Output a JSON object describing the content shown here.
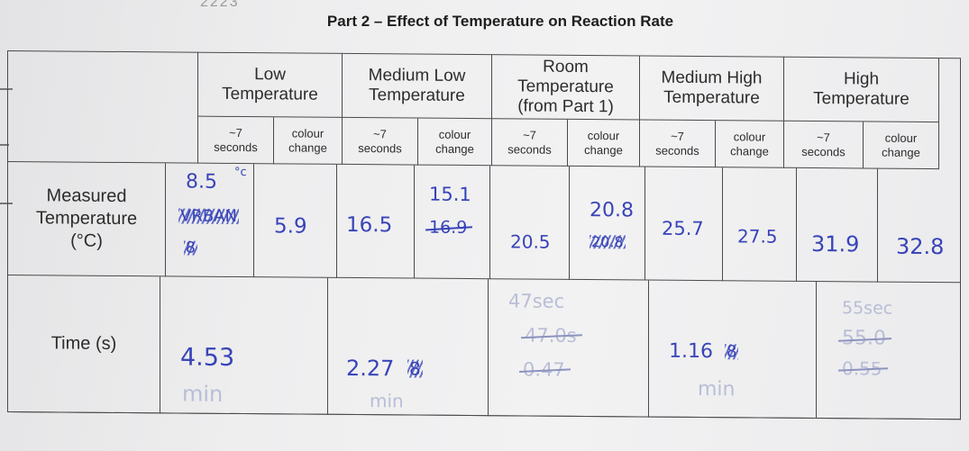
{
  "title": "Part 2 – Effect of Temperature on Reaction Rate",
  "top_mark": "2223",
  "columns": [
    {
      "name": "Low Temperature"
    },
    {
      "name": "Medium Low Temperature"
    },
    {
      "name": "Room Temperature (from Part 1)"
    },
    {
      "name": "Medium High Temperature"
    },
    {
      "name": "High Temperature"
    }
  ],
  "header_lines": {
    "low_1": "Low",
    "low_2": "Temperature",
    "medlow_1": "Medium Low",
    "medlow_2": "Temperature",
    "room_1": "Room",
    "room_2": "Temperature",
    "room_3": "(from Part 1)",
    "medhigh_1": "Medium High",
    "medhigh_2": "Temperature",
    "high_1": "High",
    "high_2": "Temperature"
  },
  "sub_labels": {
    "approx": "~7",
    "seconds": "seconds",
    "colour": "colour",
    "change": "change"
  },
  "rows": {
    "measured_1": "Measured",
    "measured_2": "Temperature",
    "measured_3": "(°C)",
    "time": "Time (s)"
  },
  "handwritten": {
    "low_seconds_value": "8.5",
    "low_seconds_unit": "°c",
    "low_seconds_scribble": "VRBAN",
    "low_seconds_scribble_2": "8",
    "low_colour": "5.9",
    "medlow_seconds": "16.5",
    "medlow_colour_correct": "15.1",
    "medlow_colour_struck": "16.9",
    "room_seconds": "20.5",
    "room_colour_correct": "20.8",
    "room_colour_scribble": "20.8",
    "medhigh_seconds": "25.7",
    "medhigh_colour": "27.5",
    "high_seconds": "31.9",
    "high_colour": "32.8",
    "time_low": "4.53",
    "time_low_unit": "min",
    "time_medlow": "2.27",
    "time_medlow_struck": "8",
    "time_medlow_unit": "min",
    "time_room_1": "47sec",
    "time_room_2": "47.0s",
    "time_room_3": "0.47",
    "time_medhigh": "1.16",
    "time_medhigh_struck": "8",
    "time_medhigh_unit": "min",
    "time_high_1": "55sec",
    "time_high_2": "55.0",
    "time_high_3": "0.55"
  }
}
